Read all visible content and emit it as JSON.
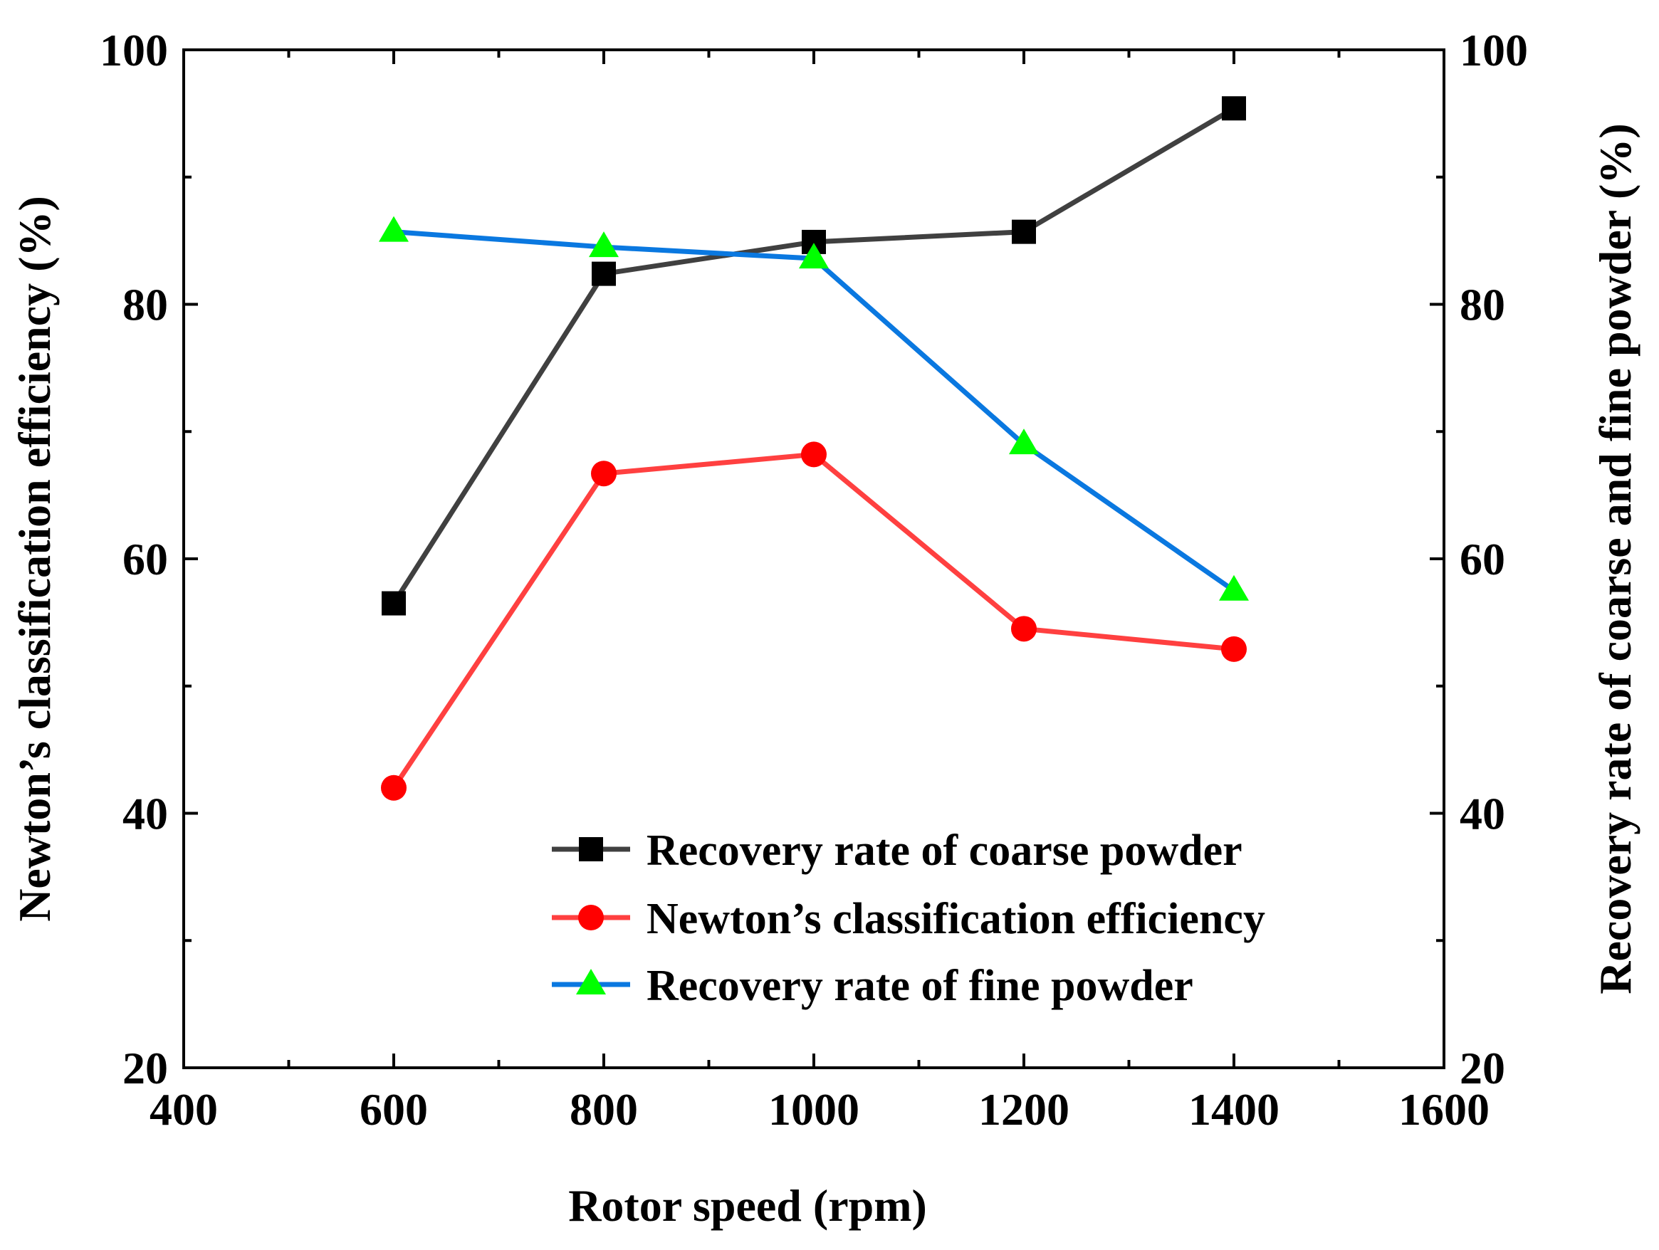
{
  "chart_data": {
    "type": "line",
    "xlabel": "Rotor speed (rpm)",
    "ylabel_left": "Newton’s classification efficiency (%)",
    "ylabel_right": "Recovery rate of coarse and fine powder (%)",
    "xlim": [
      400,
      1600
    ],
    "ylim": [
      20,
      100
    ],
    "x_ticks": [
      "400",
      "600",
      "800",
      "1000",
      "1200",
      "1400",
      "1600"
    ],
    "y_ticks": [
      "20",
      "40",
      "60",
      "80",
      "100"
    ],
    "x": [
      600,
      800,
      1000,
      1200,
      1400
    ],
    "legend_position": "bottom-right",
    "series": [
      {
        "name": "Recovery rate of coarse powder",
        "axis": "right",
        "marker": "square",
        "line_color": "#404040",
        "marker_color": "#000000",
        "values": [
          56.5,
          82.4,
          84.9,
          85.7,
          95.4
        ]
      },
      {
        "name": "Newton’s classification efficiency",
        "axis": "left",
        "marker": "circle",
        "line_color": "#ff4040",
        "marker_color": "#ff0000",
        "values": [
          42.0,
          66.7,
          68.2,
          54.5,
          52.9
        ]
      },
      {
        "name": "Recovery rate of fine powder",
        "axis": "right",
        "marker": "triangle",
        "line_color": "#0a78e0",
        "marker_color": "#00ff00",
        "values": [
          85.7,
          84.5,
          83.6,
          69.0,
          57.5
        ]
      }
    ]
  }
}
